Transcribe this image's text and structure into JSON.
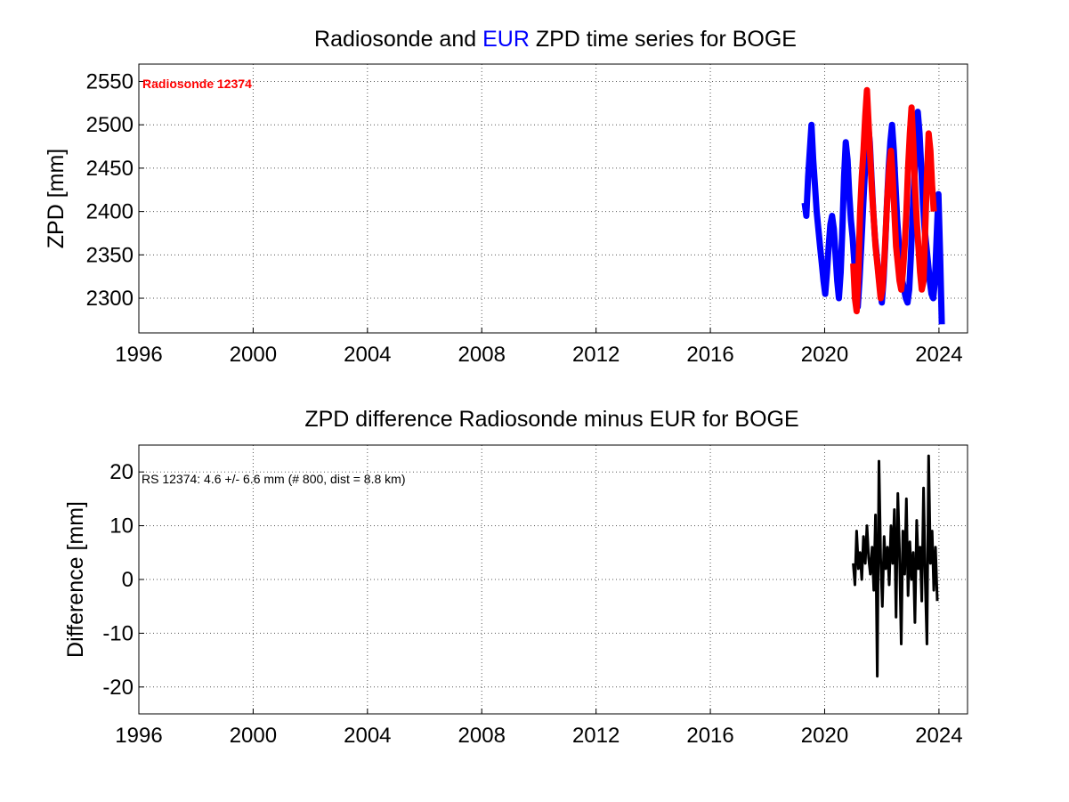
{
  "chart_data": [
    {
      "type": "line",
      "title_parts": [
        {
          "text": "Radiosonde and ",
          "color": "#000000"
        },
        {
          "text": "EUR",
          "color": "#0000ff"
        },
        {
          "text": " ZPD time series for BOGE",
          "color": "#000000"
        }
      ],
      "xlabel": "",
      "ylabel": "ZPD [mm]",
      "xlim": [
        1996,
        2025
      ],
      "ylim": [
        2260,
        2570
      ],
      "xticks": [
        1996,
        2000,
        2004,
        2008,
        2012,
        2016,
        2020,
        2024
      ],
      "yticks": [
        2300,
        2350,
        2400,
        2450,
        2500,
        2550
      ],
      "grid": true,
      "annotation": {
        "text": "Radiosonde 12374",
        "color": "#ff0000",
        "placement": "top-left"
      },
      "series": [
        {
          "name": "EUR",
          "color": "#0000ff",
          "x": [
            2019.3,
            2019.36,
            2019.42,
            2019.48,
            2019.54,
            2019.6,
            2019.66,
            2019.72,
            2019.78,
            2019.84,
            2019.9,
            2019.96,
            2020.02,
            2020.08,
            2020.14,
            2020.2,
            2020.26,
            2020.32,
            2020.38,
            2020.44,
            2020.5,
            2020.56,
            2020.62,
            2020.68,
            2020.74,
            2020.8,
            2020.86,
            2020.92,
            2020.98,
            2021.04,
            2021.1,
            2021.16,
            2021.22,
            2021.28,
            2021.34,
            2021.4,
            2021.46,
            2021.52,
            2021.58,
            2021.64,
            2021.7,
            2021.76,
            2021.82,
            2021.88,
            2021.94,
            2022.0,
            2022.06,
            2022.12,
            2022.18,
            2022.24,
            2022.3,
            2022.36,
            2022.42,
            2022.48,
            2022.54,
            2022.6,
            2022.66,
            2022.72,
            2022.78,
            2022.84,
            2022.9,
            2022.96,
            2023.02,
            2023.08,
            2023.14,
            2023.2,
            2023.26,
            2023.32,
            2023.38,
            2023.44,
            2023.5,
            2023.56,
            2023.62,
            2023.68,
            2023.74,
            2023.8,
            2023.86,
            2023.92,
            2023.98,
            2024.04,
            2024.1
          ],
          "y": [
            2410,
            2395,
            2440,
            2470,
            2500,
            2460,
            2430,
            2400,
            2380,
            2360,
            2340,
            2320,
            2305,
            2330,
            2360,
            2385,
            2395,
            2380,
            2350,
            2320,
            2300,
            2330,
            2380,
            2440,
            2480,
            2460,
            2420,
            2390,
            2370,
            2340,
            2310,
            2290,
            2320,
            2360,
            2400,
            2440,
            2470,
            2500,
            2480,
            2440,
            2400,
            2370,
            2350,
            2330,
            2310,
            2295,
            2320,
            2360,
            2410,
            2450,
            2480,
            2500,
            2470,
            2430,
            2390,
            2360,
            2340,
            2320,
            2310,
            2300,
            2295,
            2310,
            2350,
            2400,
            2440,
            2480,
            2515,
            2490,
            2450,
            2410,
            2380,
            2360,
            2340,
            2320,
            2305,
            2300,
            2320,
            2370,
            2420,
            2350,
            2270
          ]
        },
        {
          "name": "Radiosonde 12374",
          "color": "#ff0000",
          "x": [
            2021.0,
            2021.06,
            2021.12,
            2021.18,
            2021.24,
            2021.3,
            2021.36,
            2021.42,
            2021.48,
            2021.54,
            2021.6,
            2021.66,
            2021.72,
            2021.78,
            2021.84,
            2021.9,
            2021.96,
            2022.02,
            2022.08,
            2022.14,
            2022.2,
            2022.26,
            2022.32,
            2022.38,
            2022.44,
            2022.5,
            2022.56,
            2022.62,
            2022.68,
            2022.74,
            2022.8,
            2022.86,
            2022.92,
            2022.98,
            2023.04,
            2023.1,
            2023.16,
            2023.22,
            2023.28,
            2023.34,
            2023.4,
            2023.46,
            2023.52,
            2023.58,
            2023.64,
            2023.7,
            2023.76,
            2023.82
          ],
          "y": [
            2340,
            2300,
            2285,
            2330,
            2400,
            2440,
            2470,
            2510,
            2540,
            2500,
            2460,
            2420,
            2390,
            2360,
            2340,
            2320,
            2300,
            2310,
            2340,
            2380,
            2420,
            2450,
            2470,
            2440,
            2400,
            2360,
            2340,
            2320,
            2310,
            2330,
            2360,
            2400,
            2450,
            2490,
            2520,
            2480,
            2430,
            2390,
            2360,
            2330,
            2310,
            2320,
            2380,
            2440,
            2490,
            2470,
            2430,
            2400
          ]
        }
      ]
    },
    {
      "type": "line",
      "title": "ZPD difference Radiosonde minus EUR for BOGE",
      "xlabel": "",
      "ylabel": "Difference [mm]",
      "xlim": [
        1996,
        2025
      ],
      "ylim": [
        -25,
        25
      ],
      "xticks": [
        1996,
        2000,
        2004,
        2008,
        2012,
        2016,
        2020,
        2024
      ],
      "yticks": [
        -20,
        -10,
        0,
        10,
        20
      ],
      "grid": true,
      "annotation": {
        "text": "RS 12374: 4.6 +/- 6.6 mm (# 800, dist =   8.8 km)",
        "color": "#000000",
        "placement": "top-left"
      },
      "series": [
        {
          "color": "#000000",
          "x": [
            2021.0,
            2021.06,
            2021.12,
            2021.18,
            2021.24,
            2021.3,
            2021.36,
            2021.42,
            2021.48,
            2021.54,
            2021.6,
            2021.66,
            2021.72,
            2021.78,
            2021.84,
            2021.9,
            2021.96,
            2022.02,
            2022.08,
            2022.14,
            2022.2,
            2022.26,
            2022.32,
            2022.38,
            2022.44,
            2022.5,
            2022.56,
            2022.62,
            2022.68,
            2022.74,
            2022.8,
            2022.86,
            2022.92,
            2022.98,
            2023.04,
            2023.1,
            2023.16,
            2023.22,
            2023.28,
            2023.34,
            2023.4,
            2023.46,
            2023.52,
            2023.58,
            2023.64,
            2023.7,
            2023.76,
            2023.82,
            2023.88,
            2023.94
          ],
          "y": [
            3,
            -1,
            9,
            2,
            5,
            0,
            8,
            3,
            10,
            4,
            1,
            6,
            -2,
            12,
            -18,
            22,
            4,
            -5,
            8,
            2,
            6,
            -1,
            10,
            3,
            13,
            -7,
            16,
            5,
            -12,
            9,
            1,
            15,
            -3,
            7,
            0,
            5,
            -8,
            11,
            2,
            6,
            -4,
            17,
            0,
            -12,
            23,
            3,
            9,
            -2,
            6,
            -4
          ]
        }
      ]
    }
  ]
}
